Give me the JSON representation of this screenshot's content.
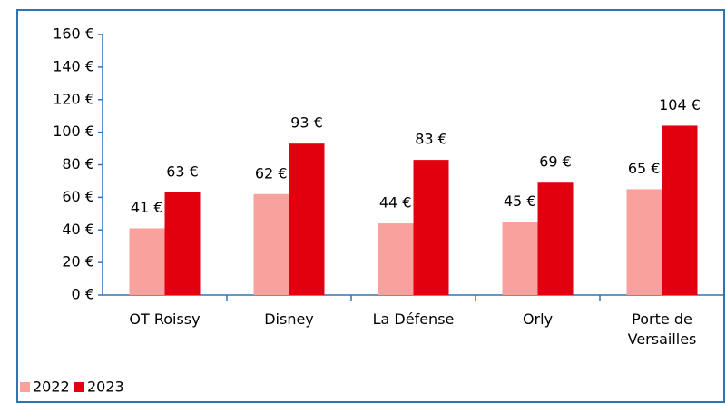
{
  "chart_data": {
    "type": "bar",
    "categories": [
      "OT Roissy",
      "Disney",
      "La Défense",
      "Orly",
      "Porte de Versailles"
    ],
    "series": [
      {
        "name": "2022",
        "color": "#f9a19c",
        "values": [
          41,
          62,
          44,
          45,
          65
        ],
        "value_labels": [
          "41 €",
          "62 €",
          "44 €",
          "45 €",
          "65 €"
        ]
      },
      {
        "name": "2023",
        "color": "#e2000f",
        "values": [
          63,
          93,
          83,
          69,
          104
        ],
        "value_labels": [
          "63 €",
          "93 €",
          "83 €",
          "69 €",
          "104 €"
        ]
      }
    ],
    "ylim": [
      0,
      160
    ],
    "yticks": [
      {
        "value": 0,
        "label": "0 €"
      },
      {
        "value": 20,
        "label": "20 €"
      },
      {
        "value": 40,
        "label": "40 €"
      },
      {
        "value": 60,
        "label": "60 €"
      },
      {
        "value": 80,
        "label": "80 €"
      },
      {
        "value": 100,
        "label": "100 €"
      },
      {
        "value": 120,
        "label": "120 €"
      },
      {
        "value": 140,
        "label": "140 €"
      },
      {
        "value": 160,
        "label": "160 €"
      }
    ],
    "legend": "bottom-left"
  }
}
